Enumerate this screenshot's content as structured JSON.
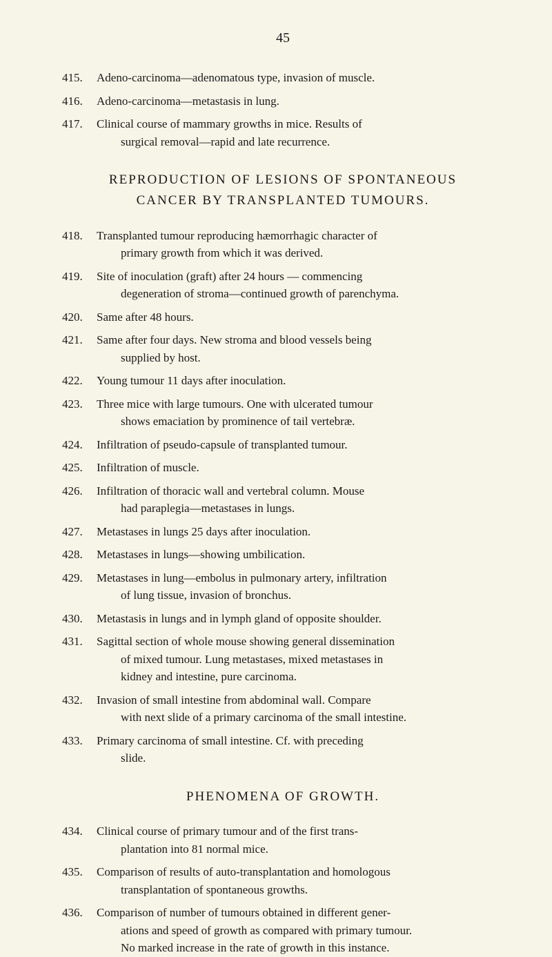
{
  "pageNumber": "45",
  "topEntries": [
    {
      "num": "415.",
      "text": "Adeno-carcinoma—adenomatous type, invasion of muscle."
    },
    {
      "num": "416.",
      "text": "Adeno-carcinoma—metastasis in lung."
    },
    {
      "num": "417.",
      "text": "Clinical course of mammary growths in mice. Results of surgical removal—rapid and late recurrence.",
      "hasIndent": true,
      "firstLine": "Clinical course of mammary growths in mice. Results of",
      "secondLine": "surgical removal—rapid and late recurrence."
    }
  ],
  "section1": {
    "titleLine1": "REPRODUCTION OF LESIONS OF SPONTANEOUS",
    "titleLine2": "CANCER BY TRANSPLANTED TUMOURS."
  },
  "section1Entries": [
    {
      "num": "418.",
      "firstLine": "Transplanted tumour reproducing hæmorrhagic character of",
      "secondLine": "primary growth from which it was derived."
    },
    {
      "num": "419.",
      "firstLine": "Site of inoculation (graft) after 24 hours — commencing",
      "secondLine": "degeneration of stroma—continued growth of parenchyma."
    },
    {
      "num": "420.",
      "text": "Same after 48 hours."
    },
    {
      "num": "421.",
      "firstLine": "Same after four days. New stroma and blood vessels being",
      "secondLine": "supplied by host."
    },
    {
      "num": "422.",
      "text": "Young tumour 11 days after inoculation."
    },
    {
      "num": "423.",
      "firstLine": "Three mice with large tumours. One with ulcerated tumour",
      "secondLine": "shows emaciation by prominence of tail vertebræ."
    },
    {
      "num": "424.",
      "text": "Infiltration of pseudo-capsule of transplanted tumour."
    },
    {
      "num": "425.",
      "text": "Infiltration of muscle."
    },
    {
      "num": "426.",
      "firstLine": "Infiltration of thoracic wall and vertebral column. Mouse",
      "secondLine": "had paraplegia—metastases in lungs."
    },
    {
      "num": "427.",
      "text": "Metastases in lungs 25 days after inoculation."
    },
    {
      "num": "428.",
      "text": "Metastases in lungs—showing umbilication."
    },
    {
      "num": "429.",
      "firstLine": "Metastases in lung—embolus in pulmonary artery, infiltration",
      "secondLine": "of lung tissue, invasion of bronchus."
    },
    {
      "num": "430.",
      "text": "Metastasis in lungs and in lymph gland of opposite shoulder."
    },
    {
      "num": "431.",
      "firstLine": "Sagittal section of whole mouse showing general dissemination",
      "secondLine": "of mixed tumour. Lung metastases, mixed metastases in",
      "thirdLine": "kidney and intestine, pure carcinoma."
    },
    {
      "num": "432.",
      "firstLine": "Invasion of small intestine from abdominal wall. Compare",
      "secondLine": "with next slide of a primary carcinoma of the small intestine."
    },
    {
      "num": "433.",
      "firstLine": "Primary carcinoma of small intestine. Cf. with preceding",
      "secondLine": "slide."
    }
  ],
  "section2": {
    "title": "PHENOMENA OF GROWTH."
  },
  "section2Entries": [
    {
      "num": "434.",
      "firstLine": "Clinical course of primary tumour and of the first trans-",
      "secondLine": "plantation into 81 normal mice."
    },
    {
      "num": "435.",
      "firstLine": "Comparison of results of auto-transplantation and homologous",
      "secondLine": "transplantation of spontaneous growths."
    },
    {
      "num": "436.",
      "firstLine": "Comparison of number of tumours obtained in different gener-",
      "secondLine": "ations and speed of growth as compared with primary tumour.",
      "thirdLine": "No marked increase in the rate of growth in this instance."
    }
  ]
}
